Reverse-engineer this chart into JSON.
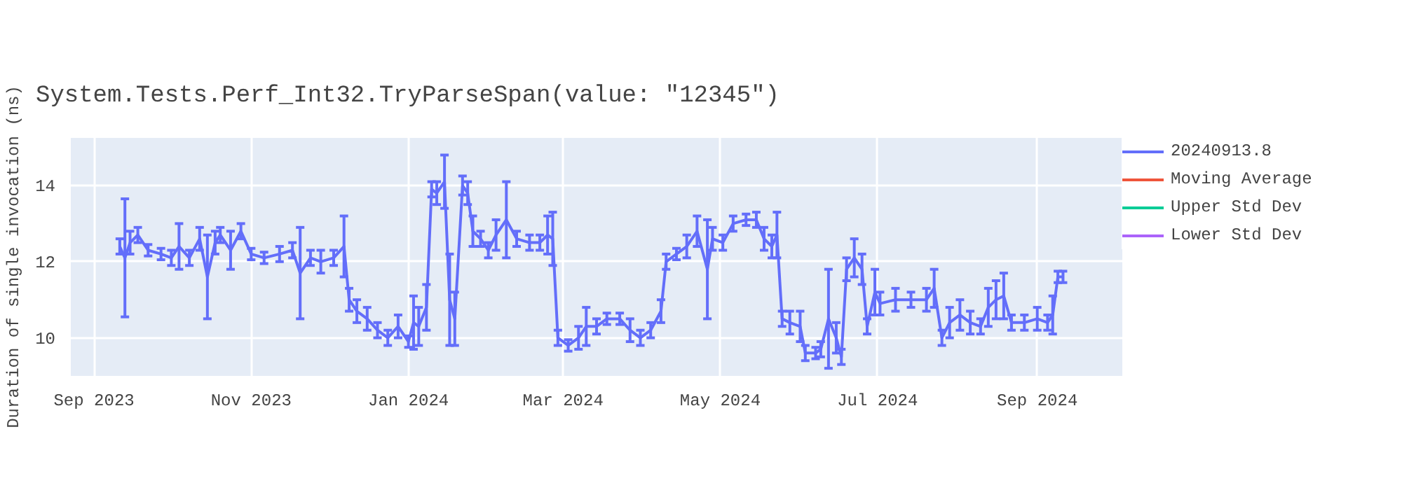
{
  "chart_data": {
    "type": "line",
    "title": "System.Tests.Perf_Int32.TryParseSpan(value: \"12345\")",
    "ylabel": "Duration of single invocation (ns)",
    "x": [
      "2023-09-11",
      "2023-09-13",
      "2023-09-15",
      "2023-09-18",
      "2023-09-22",
      "2023-09-27",
      "2023-10-01",
      "2023-10-04",
      "2023-10-08",
      "2023-10-12",
      "2023-10-15",
      "2023-10-18",
      "2023-10-20",
      "2023-10-24",
      "2023-10-28",
      "2023-11-01",
      "2023-11-06",
      "2023-11-12",
      "2023-11-17",
      "2023-11-20",
      "2023-11-24",
      "2023-11-28",
      "2023-12-03",
      "2023-12-07",
      "2023-12-09",
      "2023-12-12",
      "2023-12-16",
      "2023-12-20",
      "2023-12-24",
      "2023-12-28",
      "2024-01-01",
      "2024-01-03",
      "2024-01-05",
      "2024-01-08",
      "2024-01-10",
      "2024-01-12",
      "2024-01-15",
      "2024-01-17",
      "2024-01-19",
      "2024-01-22",
      "2024-01-24",
      "2024-01-26",
      "2024-01-29",
      "2024-02-01",
      "2024-02-04",
      "2024-02-08",
      "2024-02-12",
      "2024-02-17",
      "2024-02-21",
      "2024-02-24",
      "2024-02-26",
      "2024-02-28",
      "2024-03-03",
      "2024-03-07",
      "2024-03-10",
      "2024-03-14",
      "2024-03-18",
      "2024-03-23",
      "2024-03-27",
      "2024-03-31",
      "2024-04-04",
      "2024-04-08",
      "2024-04-10",
      "2024-04-14",
      "2024-04-18",
      "2024-04-22",
      "2024-04-26",
      "2024-04-28",
      "2024-05-02",
      "2024-05-06",
      "2024-05-11",
      "2024-05-15",
      "2024-05-18",
      "2024-05-21",
      "2024-05-23",
      "2024-05-25",
      "2024-05-28",
      "2024-06-01",
      "2024-06-03",
      "2024-06-07",
      "2024-06-09",
      "2024-06-12",
      "2024-06-15",
      "2024-06-17",
      "2024-06-19",
      "2024-06-22",
      "2024-06-25",
      "2024-06-27",
      "2024-06-30",
      "2024-07-02",
      "2024-07-08",
      "2024-07-14",
      "2024-07-20",
      "2024-07-23",
      "2024-07-26",
      "2024-07-29",
      "2024-08-02",
      "2024-08-06",
      "2024-08-10",
      "2024-08-13",
      "2024-08-16",
      "2024-08-19",
      "2024-08-22",
      "2024-08-27",
      "2024-09-01",
      "2024-09-05",
      "2024-09-07",
      "2024-09-09",
      "2024-09-11"
    ],
    "series": [
      {
        "name": "20240913.8",
        "color": "#636efa",
        "values": [
          12.4,
          12.1,
          12.5,
          12.7,
          12.3,
          12.2,
          12.1,
          12.4,
          12.1,
          12.6,
          11.6,
          12.5,
          12.7,
          12.3,
          12.8,
          12.2,
          12.1,
          12.2,
          12.3,
          11.7,
          12.1,
          12.0,
          12.1,
          12.4,
          11.0,
          10.7,
          10.5,
          10.2,
          10.0,
          10.3,
          9.9,
          10.4,
          10.3,
          10.8,
          13.9,
          13.8,
          14.1,
          11.0,
          10.5,
          14.0,
          13.8,
          12.8,
          12.6,
          12.3,
          12.7,
          13.1,
          12.6,
          12.5,
          12.5,
          12.7,
          12.6,
          10.0,
          9.8,
          10.0,
          10.3,
          10.3,
          10.5,
          10.5,
          10.2,
          10.0,
          10.2,
          10.7,
          12.0,
          12.2,
          12.4,
          12.8,
          11.8,
          12.6,
          12.5,
          13.0,
          13.1,
          13.1,
          12.6,
          12.4,
          12.7,
          10.5,
          10.4,
          10.3,
          9.6,
          9.6,
          9.7,
          10.5,
          10.0,
          9.5,
          11.8,
          12.1,
          11.8,
          10.3,
          11.2,
          10.9,
          11.0,
          11.0,
          11.0,
          11.3,
          10.0,
          10.4,
          10.6,
          10.4,
          10.3,
          10.8,
          11.0,
          11.1,
          10.4,
          10.4,
          10.5,
          10.4,
          10.6,
          11.6,
          11.6
        ],
        "errors": [
          0.2,
          1.55,
          0.3,
          0.2,
          0.15,
          0.15,
          0.2,
          0.6,
          0.2,
          0.3,
          1.1,
          0.3,
          0.2,
          0.5,
          0.2,
          0.15,
          0.15,
          0.2,
          0.2,
          1.2,
          0.2,
          0.3,
          0.2,
          0.8,
          0.3,
          0.3,
          0.3,
          0.2,
          0.2,
          0.3,
          0.15,
          0.7,
          0.5,
          0.6,
          0.2,
          0.3,
          0.7,
          1.2,
          0.7,
          0.25,
          0.3,
          0.4,
          0.2,
          0.2,
          0.4,
          1.0,
          0.2,
          0.2,
          0.2,
          0.5,
          0.7,
          0.2,
          0.15,
          0.3,
          0.5,
          0.2,
          0.15,
          0.15,
          0.3,
          0.2,
          0.2,
          0.3,
          0.2,
          0.15,
          0.3,
          0.4,
          1.3,
          0.3,
          0.2,
          0.2,
          0.15,
          0.2,
          0.3,
          0.3,
          0.6,
          0.2,
          0.3,
          0.4,
          0.2,
          0.15,
          0.2,
          1.3,
          0.4,
          0.2,
          0.3,
          0.5,
          0.4,
          0.2,
          0.6,
          0.3,
          0.3,
          0.2,
          0.3,
          0.5,
          0.2,
          0.4,
          0.4,
          0.3,
          0.2,
          0.5,
          0.5,
          0.6,
          0.2,
          0.2,
          0.3,
          0.2,
          0.5,
          0.15,
          0.15
        ]
      },
      {
        "name": "Moving Average",
        "color": "#ef553b",
        "values": [
          null,
          null,
          null,
          null,
          null,
          null,
          null,
          null,
          null,
          null,
          null,
          null,
          null,
          null,
          null,
          null,
          null,
          null,
          null,
          null,
          null,
          null,
          null,
          null,
          null,
          null,
          null,
          null,
          null,
          null,
          null,
          null,
          null,
          null,
          null,
          null,
          null,
          null,
          null,
          null,
          null,
          null,
          null,
          null,
          null,
          null,
          null,
          null,
          null,
          null,
          null,
          null,
          null,
          null,
          null,
          null,
          null,
          null,
          null,
          null,
          null,
          null,
          null,
          null,
          null,
          null,
          null,
          null,
          null,
          null,
          null,
          null,
          null,
          null,
          null,
          null,
          null,
          null,
          null,
          null,
          null,
          null,
          null,
          null,
          null,
          null,
          null,
          null,
          null,
          null,
          null,
          null,
          null,
          null,
          null,
          null,
          null,
          null,
          null,
          null,
          null,
          null,
          null,
          null,
          null,
          null,
          null,
          null,
          null
        ]
      },
      {
        "name": "Upper Std Dev",
        "color": "#00cc96",
        "values": [
          null,
          null,
          null,
          null,
          null,
          null,
          null,
          null,
          null,
          null,
          null,
          null,
          null,
          null,
          null,
          null,
          null,
          null,
          null,
          null,
          null,
          null,
          null,
          null,
          null,
          null,
          null,
          null,
          null,
          null,
          null,
          null,
          null,
          null,
          null,
          null,
          null,
          null,
          null,
          null,
          null,
          null,
          null,
          null,
          null,
          null,
          null,
          null,
          null,
          null,
          null,
          null,
          null,
          null,
          null,
          null,
          null,
          null,
          null,
          null,
          null,
          null,
          null,
          null,
          null,
          null,
          null,
          null,
          null,
          null,
          null,
          null,
          null,
          null,
          null,
          null,
          null,
          null,
          null,
          null,
          null,
          null,
          null,
          null,
          null,
          null,
          null,
          null,
          null,
          null,
          null,
          null,
          null,
          null,
          null,
          null,
          null,
          null,
          null,
          null,
          null,
          null,
          null,
          null,
          null,
          null,
          null,
          null,
          null
        ]
      },
      {
        "name": "Lower Std Dev",
        "color": "#ab63fa",
        "values": [
          null,
          null,
          null,
          null,
          null,
          null,
          null,
          null,
          null,
          null,
          null,
          null,
          null,
          null,
          null,
          null,
          null,
          null,
          null,
          null,
          null,
          null,
          null,
          null,
          null,
          null,
          null,
          null,
          null,
          null,
          null,
          null,
          null,
          null,
          null,
          null,
          null,
          null,
          null,
          null,
          null,
          null,
          null,
          null,
          null,
          null,
          null,
          null,
          null,
          null,
          null,
          null,
          null,
          null,
          null,
          null,
          null,
          null,
          null,
          null,
          null,
          null,
          null,
          null,
          null,
          null,
          null,
          null,
          null,
          null,
          null,
          null,
          null,
          null,
          null,
          null,
          null,
          null,
          null,
          null,
          null,
          null,
          null,
          null,
          null,
          null,
          null,
          null,
          null,
          null,
          null,
          null,
          null,
          null,
          null,
          null,
          null,
          null,
          null,
          null,
          null,
          null,
          null,
          null,
          null,
          null,
          null,
          null,
          null
        ]
      }
    ],
    "xlim": [
      "2023-08-23",
      "2024-10-04"
    ],
    "xticks": [
      {
        "value": "2023-09-01",
        "label": "Sep 2023"
      },
      {
        "value": "2023-11-01",
        "label": "Nov 2023"
      },
      {
        "value": "2024-01-01",
        "label": "Jan 2024"
      },
      {
        "value": "2024-03-01",
        "label": "Mar 2024"
      },
      {
        "value": "2024-05-01",
        "label": "May 2024"
      },
      {
        "value": "2024-07-01",
        "label": "Jul 2024"
      },
      {
        "value": "2024-09-01",
        "label": "Sep 2024"
      }
    ],
    "ylim": [
      9,
      15.25
    ],
    "yticks": [
      10,
      12,
      14
    ],
    "grid": true,
    "legend": "top right",
    "line_style": "solid"
  }
}
